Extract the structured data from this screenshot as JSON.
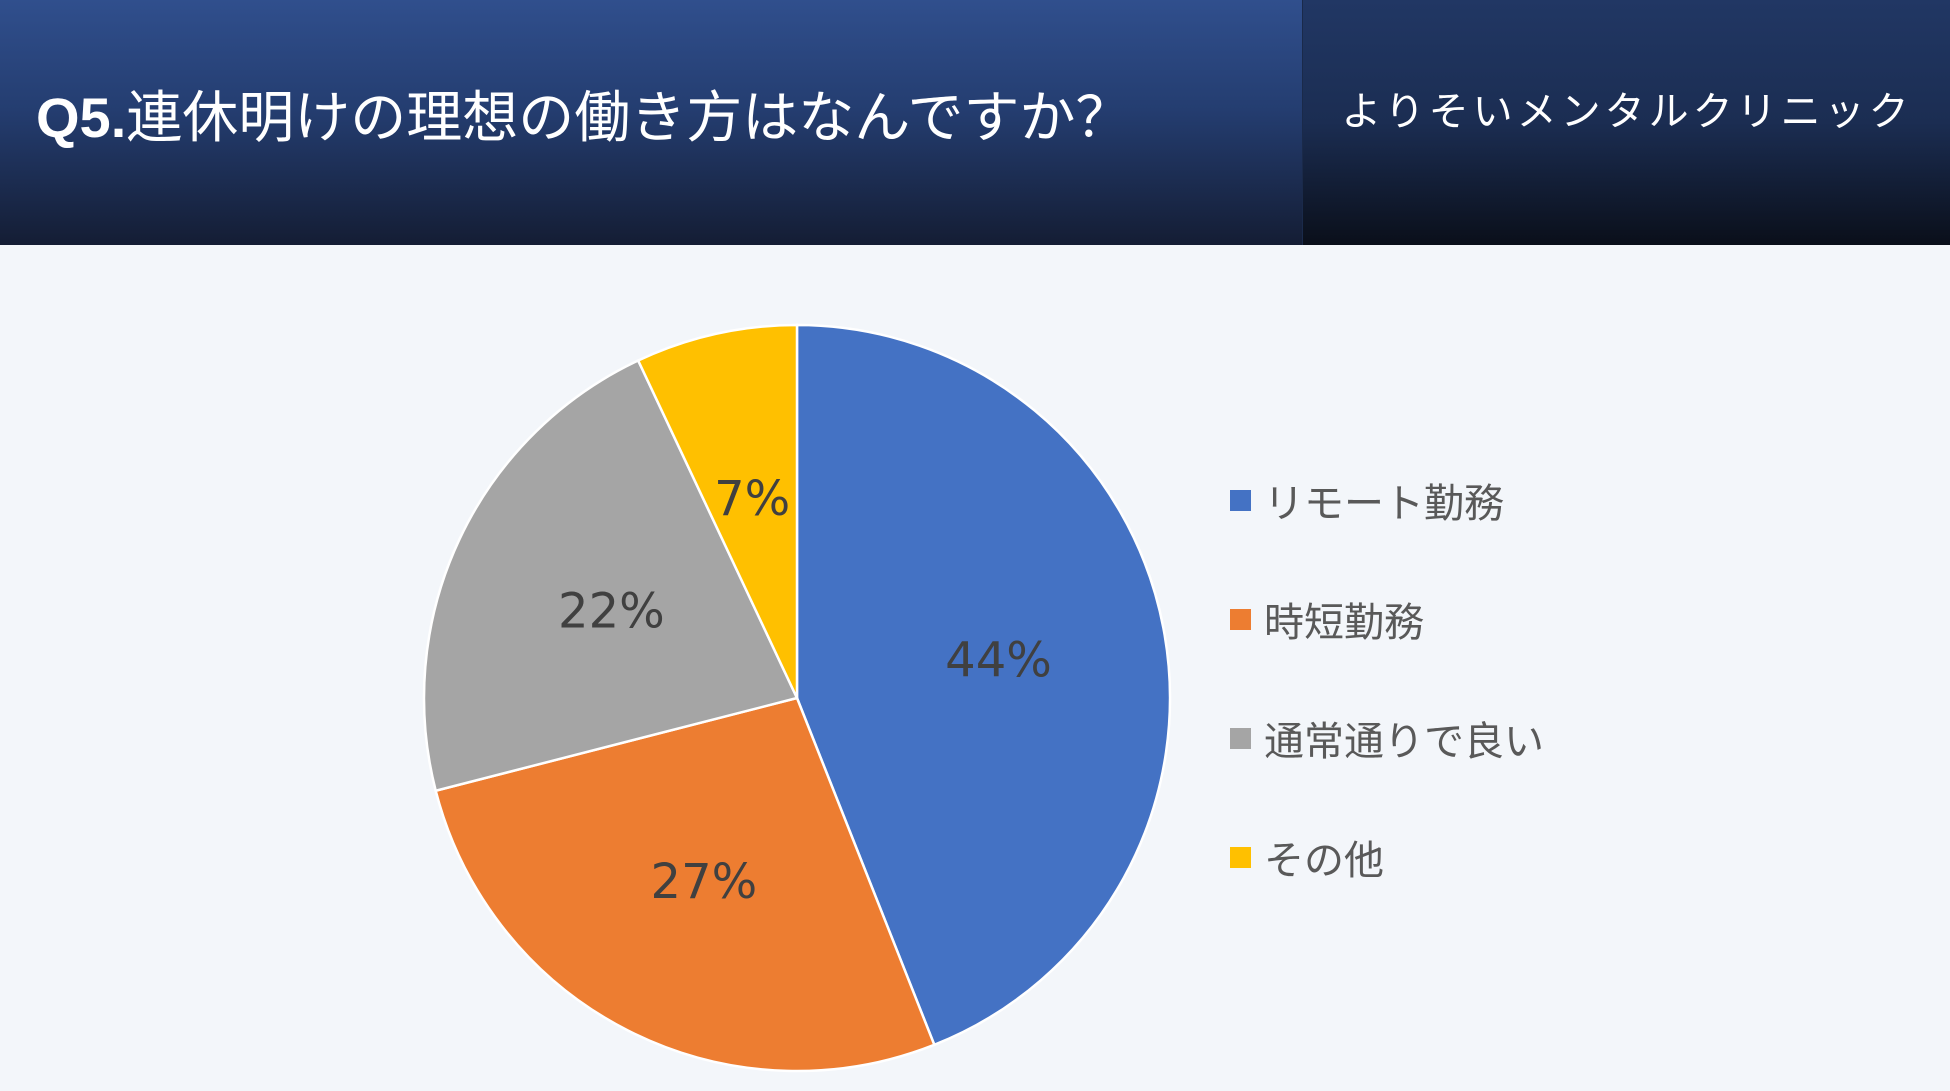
{
  "header": {
    "question_number": "Q5.",
    "question_text": "連休明けの理想の働き方はなんですか？",
    "clinic_name": "よりそいメンタルクリニック"
  },
  "chart_data": {
    "type": "pie",
    "categories": [
      "リモート勤務",
      "時短勤務",
      "通常通りで良い",
      "その他"
    ],
    "values": [
      44,
      27,
      22,
      7
    ],
    "data_labels": [
      "44%",
      "27%",
      "22%",
      "7%"
    ],
    "colors": [
      "#4472c4",
      "#ed7d31",
      "#a5a5a5",
      "#ffc000"
    ],
    "start_angle": "12 o'clock",
    "direction": "clockwise",
    "legend_position": "right"
  }
}
